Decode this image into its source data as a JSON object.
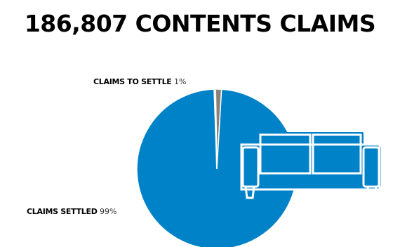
{
  "chart_data": {
    "type": "pie",
    "title": "186,807 CONTENTS CLAIMS",
    "slices": [
      {
        "label": "CLAIMS TO SETTLE",
        "percent_label": "1%",
        "value": 1.5,
        "color": "#8a8279"
      },
      {
        "label": "CLAIMS SETTLED",
        "percent_label": "99%",
        "value": 98.5,
        "color": "#0082c8"
      }
    ]
  },
  "icon": {
    "name": "sofa-icon",
    "color": "#0082c8"
  }
}
